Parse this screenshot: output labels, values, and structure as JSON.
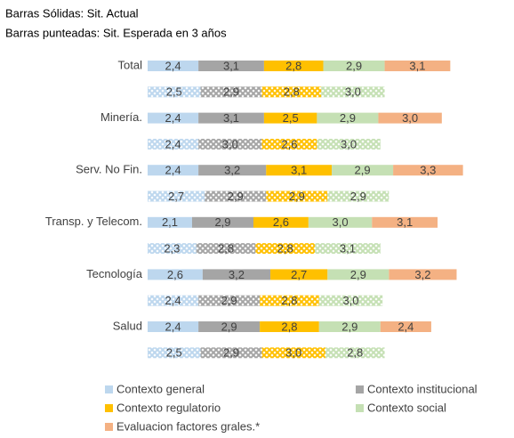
{
  "chart_data": {
    "type": "stacked-bar-horizontal",
    "title": "Barras Sólidas: Sit. Actual",
    "subtitle": "Barras punteadas: Sit. Esperada en 3 años",
    "categories": [
      "Total",
      null,
      "Minería.",
      null,
      "Serv. No Fin.",
      null,
      "Transp. y Telecom.",
      null,
      "Tecnología",
      null,
      "Salud",
      null
    ],
    "series": [
      {
        "name": "Contexto general",
        "color": "#bdd7ee",
        "values": [
          2.4,
          2.5,
          2.4,
          2.4,
          2.4,
          2.7,
          2.1,
          2.3,
          2.6,
          2.4,
          2.4,
          2.5
        ],
        "value_labels": [
          "2,4",
          "2,5",
          "2,4",
          "2,4",
          "2,4",
          "2,7",
          "2,1",
          "2,3",
          "2,6",
          "2,4",
          "2,4",
          "2,5"
        ]
      },
      {
        "name": "Contexto institucional",
        "color": "#a5a5a5",
        "values": [
          3.1,
          2.9,
          3.1,
          3.0,
          3.2,
          2.9,
          2.9,
          2.8,
          3.2,
          2.9,
          2.9,
          2.9
        ],
        "value_labels": [
          "3,1",
          "2,9",
          "3,1",
          "3,0",
          "3,2",
          "2,9",
          "2,9",
          "2,8",
          "3,2",
          "2,9",
          "2,9",
          "2,9"
        ]
      },
      {
        "name": "Contexto regulatorio",
        "color": "#ffc000",
        "values": [
          2.8,
          2.8,
          2.5,
          2.6,
          3.1,
          2.9,
          2.6,
          2.8,
          2.7,
          2.8,
          2.8,
          3.0
        ],
        "value_labels": [
          "2,8",
          "2,8",
          "2,5",
          "2,6",
          "3,1",
          "2,9",
          "2,6",
          "2,8",
          "2,7",
          "2,8",
          "2,8",
          "3,0"
        ]
      },
      {
        "name": "Contexto social",
        "color": "#c5e0b4",
        "values": [
          2.9,
          3.0,
          2.9,
          3.0,
          2.9,
          2.9,
          3.0,
          3.1,
          2.9,
          3.0,
          2.9,
          2.8
        ],
        "value_labels": [
          "2,9",
          "3,0",
          "2,9",
          "3,0",
          "2,9",
          "2,9",
          "3,0",
          "3,1",
          "2,9",
          "3,0",
          "2,9",
          "2,8"
        ]
      },
      {
        "name": "Evaluacion factores grales.*",
        "color": "#f4b183",
        "values": [
          3.1,
          null,
          3.0,
          null,
          3.3,
          null,
          3.1,
          null,
          3.2,
          null,
          2.4,
          null
        ],
        "value_labels": [
          "3,1",
          null,
          "3,0",
          null,
          "3,3",
          null,
          "3,1",
          null,
          "3,2",
          null,
          "2,4",
          null
        ]
      }
    ]
  }
}
